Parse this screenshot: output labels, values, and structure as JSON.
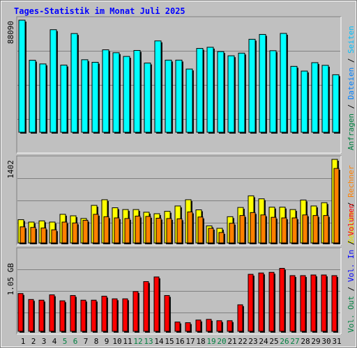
{
  "title": "Tages-Statistik im Monat Juli 2025",
  "colors": {
    "background": "#c0c0c0",
    "title": "#0000ff",
    "weekday_label": "#000000",
    "weekend_label": "#008040",
    "hits": "#00ffff",
    "files": "#00c0ff",
    "pages": "#0080ff",
    "visits": "#ffff00",
    "sites": "#ff8000",
    "volume": "#ff0000",
    "vol_in": "#0000ff",
    "vol_out": "#008040"
  },
  "legend_top": [
    {
      "text": "Anfragen",
      "color": "#008040"
    },
    {
      "text": " / ",
      "color": "#000000"
    },
    {
      "text": "Dateien",
      "color": "#0080ff"
    },
    {
      "text": " / ",
      "color": "#000000"
    },
    {
      "text": "Seiten",
      "color": "#00c0ff"
    }
  ],
  "legend_middle": [
    {
      "text": "Besuche",
      "color": "#e0e000"
    },
    {
      "text": " / ",
      "color": "#000000"
    },
    {
      "text": "Rechner",
      "color": "#ff8000"
    }
  ],
  "legend_bottom": [
    {
      "text": "Vol. Out",
      "color": "#008040"
    },
    {
      "text": " / ",
      "color": "#000000"
    },
    {
      "text": "Vol. In",
      "color": "#0000ff"
    },
    {
      "text": " / ",
      "color": "#000000"
    },
    {
      "text": "Volumen",
      "color": "#ff0000"
    }
  ],
  "chart_data": [
    {
      "type": "bar",
      "name": "hits-chart",
      "y_max_label": "88090",
      "y_max": 88090,
      "categories": [
        "1",
        "2",
        "3",
        "4",
        "5",
        "6",
        "7",
        "8",
        "9",
        "10",
        "11",
        "12",
        "13",
        "14",
        "15",
        "16",
        "17",
        "18",
        "19",
        "20",
        "21",
        "22",
        "23",
        "24",
        "25",
        "26",
        "27",
        "28",
        "29",
        "30",
        "31"
      ],
      "weekend_days": [
        5,
        6,
        12,
        13,
        19,
        20,
        26,
        27
      ],
      "series": [
        {
          "values": [
            88090,
            56600,
            53700,
            80600,
            52800,
            77600,
            57000,
            55000,
            64800,
            62500,
            59600,
            64300,
            54400,
            71800,
            56700,
            56700,
            49700,
            65900,
            66800,
            63400,
            60100,
            62200,
            73100,
            76900,
            64100,
            77700,
            51800,
            48100,
            54700,
            52600,
            45200
          ]
        }
      ]
    },
    {
      "type": "bar",
      "name": "visits-chart",
      "y_max_label": "1402",
      "y_max": 1402,
      "categories": [
        "1",
        "2",
        "3",
        "4",
        "5",
        "6",
        "7",
        "8",
        "9",
        "10",
        "11",
        "12",
        "13",
        "14",
        "15",
        "16",
        "17",
        "18",
        "19",
        "20",
        "21",
        "22",
        "23",
        "24",
        "25",
        "26",
        "27",
        "28",
        "29",
        "30",
        "31"
      ],
      "series": [
        {
          "values": [
            390,
            350,
            370,
            350,
            480,
            455,
            410,
            630,
            725,
            590,
            560,
            560,
            515,
            490,
            530,
            620,
            725,
            555,
            285,
            245,
            440,
            595,
            790,
            740,
            600,
            600,
            560,
            720,
            620,
            675,
            1402
          ]
        },
        {
          "values": [
            270,
            260,
            250,
            220,
            350,
            335,
            380,
            480,
            440,
            420,
            410,
            450,
            445,
            415,
            410,
            405,
            520,
            435,
            245,
            175,
            330,
            460,
            510,
            470,
            430,
            420,
            420,
            470,
            460,
            460,
            1250
          ]
        }
      ]
    },
    {
      "type": "bar",
      "name": "volume-chart",
      "y_max_label": "1.05 GB",
      "y_max": 1.05,
      "categories": [
        "1",
        "2",
        "3",
        "4",
        "5",
        "6",
        "7",
        "8",
        "9",
        "10",
        "11",
        "12",
        "13",
        "14",
        "15",
        "16",
        "17",
        "18",
        "19",
        "20",
        "21",
        "22",
        "23",
        "24",
        "25",
        "26",
        "27",
        "28",
        "29",
        "30",
        "31"
      ],
      "series": [
        {
          "values": [
            0.57,
            0.48,
            0.47,
            0.55,
            0.46,
            0.54,
            0.47,
            0.47,
            0.53,
            0.49,
            0.49,
            0.6,
            0.75,
            0.82,
            0.54,
            0.14,
            0.13,
            0.17,
            0.18,
            0.16,
            0.16,
            0.4,
            0.86,
            0.88,
            0.89,
            0.95,
            0.84,
            0.84,
            0.85,
            0.85,
            0.84
          ]
        }
      ]
    }
  ]
}
